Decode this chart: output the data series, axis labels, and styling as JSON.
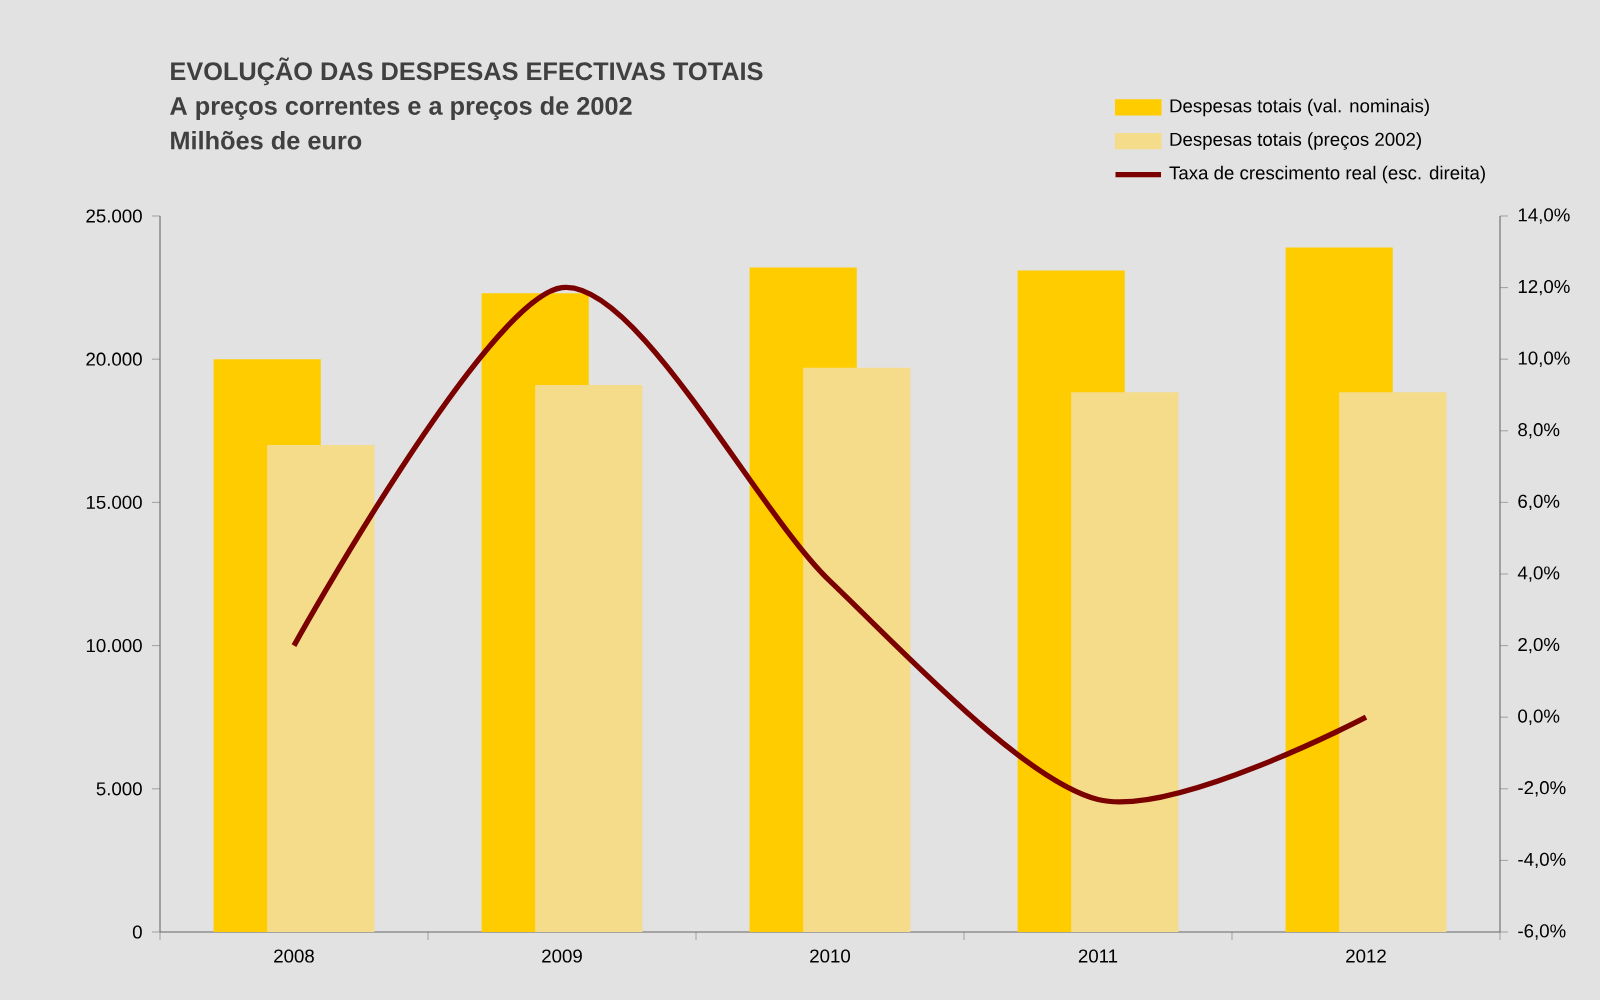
{
  "chart_data": {
    "type": "bar",
    "title": "EVOLUÇÃO DAS DESPESAS EFECTIVAS TOTAIS",
    "subtitle": "A preços correntes e a preços de 2002",
    "ylabel": "Milhões de euro",
    "categories": [
      "2008",
      "2009",
      "2010",
      "2011",
      "2012"
    ],
    "series": [
      {
        "name": "Despesas totais (val. nominais)",
        "color": "#ffcc00",
        "values": [
          20000,
          22300,
          23200,
          23100,
          23900
        ]
      },
      {
        "name": "Despesas totais (preços 2002)",
        "color": "#f5dc8a",
        "values": [
          17000,
          19100,
          19700,
          18850,
          18850
        ]
      },
      {
        "name": "Taxa de crescimento real (esc. direita)",
        "type": "line",
        "axis": "y2",
        "color": "#7b0000",
        "values": [
          2.0,
          12.0,
          3.8,
          -2.3,
          0.0
        ]
      }
    ],
    "ylim": [
      0,
      25000
    ],
    "yticks": [
      {
        "value": 0,
        "label": "0"
      },
      {
        "value": 5000,
        "label": "5.000"
      },
      {
        "value": 10000,
        "label": "10.000"
      },
      {
        "value": 15000,
        "label": "15.000"
      },
      {
        "value": 20000,
        "label": "20.000"
      },
      {
        "value": 25000,
        "label": "25.000"
      }
    ],
    "y2lim": [
      -6,
      14
    ],
    "y2ticks": [
      {
        "value": -6,
        "label": "-6,0%"
      },
      {
        "value": -4,
        "label": "-4,0%"
      },
      {
        "value": -2,
        "label": "-2,0%"
      },
      {
        "value": 0,
        "label": "0,0%"
      },
      {
        "value": 2,
        "label": "2,0%"
      },
      {
        "value": 4,
        "label": "4,0%"
      },
      {
        "value": 6,
        "label": "6,0%"
      },
      {
        "value": 8,
        "label": "8,0%"
      },
      {
        "value": 10,
        "label": "10,0%"
      },
      {
        "value": 12,
        "label": "12,0%"
      },
      {
        "value": 14,
        "label": "14,0%"
      }
    ],
    "grid": false,
    "legend": "top right",
    "marker": "none",
    "line_style": "solid"
  }
}
